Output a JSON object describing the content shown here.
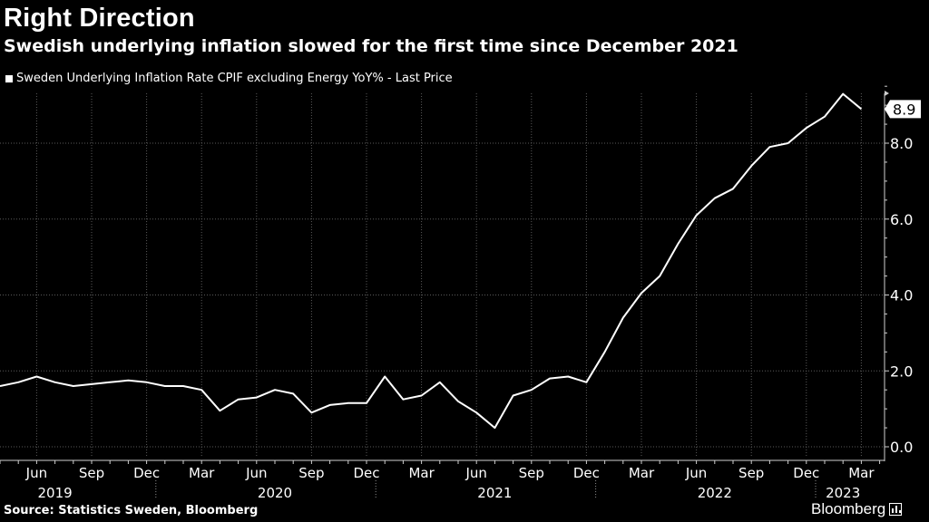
{
  "header": {
    "title": "Right Direction",
    "subtitle": "Swedish underlying inflation slowed for the first time since December 2021"
  },
  "legend": {
    "label": "Sweden Underlying Inflation Rate CPIF excluding Energy YoY% - Last Price"
  },
  "footer": {
    "source": "Source: Statistics Sweden, Bloomberg",
    "brand": "Bloomberg"
  },
  "colors": {
    "background": "#000000",
    "line": "#ffffff",
    "grid": "#5a5a5a",
    "text": "#ffffff"
  },
  "chart_data": {
    "type": "line",
    "title": "Right Direction",
    "subtitle": "Swedish underlying inflation slowed for the first time since December 2021",
    "xlabel": "",
    "ylabel": "",
    "ylim": [
      0,
      9.6
    ],
    "y_ticks": [
      "0.0",
      "2.0",
      "4.0",
      "6.0",
      "8.0"
    ],
    "y_tick_values": [
      0,
      2,
      4,
      6,
      8
    ],
    "x_tick_labels": [
      "Jun",
      "Sep",
      "Dec",
      "Mar",
      "Jun",
      "Sep",
      "Dec",
      "Mar",
      "Jun",
      "Sep",
      "Dec",
      "Mar",
      "Jun",
      "Sep",
      "Dec",
      "Mar"
    ],
    "x_tick_dates": [
      "2019-06",
      "2019-09",
      "2019-12",
      "2020-03",
      "2020-06",
      "2020-09",
      "2020-12",
      "2021-03",
      "2021-06",
      "2021-09",
      "2021-12",
      "2022-03",
      "2022-06",
      "2022-09",
      "2022-12",
      "2023-03"
    ],
    "year_labels": [
      "2019",
      "2020",
      "2021",
      "2022",
      "2023"
    ],
    "year_dates": [
      "2019-07",
      "2020-07",
      "2021-07",
      "2022-07",
      "2023-02"
    ],
    "grid": true,
    "last_value_label": "8.9",
    "series": [
      {
        "name": "Sweden Underlying Inflation Rate CPIF excluding Energy YoY% - Last Price",
        "x": [
          "2019-04",
          "2019-05",
          "2019-06",
          "2019-07",
          "2019-08",
          "2019-09",
          "2019-10",
          "2019-11",
          "2019-12",
          "2020-01",
          "2020-02",
          "2020-03",
          "2020-04",
          "2020-05",
          "2020-06",
          "2020-07",
          "2020-08",
          "2020-09",
          "2020-10",
          "2020-11",
          "2020-12",
          "2021-01",
          "2021-02",
          "2021-03",
          "2021-04",
          "2021-05",
          "2021-06",
          "2021-07",
          "2021-08",
          "2021-09",
          "2021-10",
          "2021-11",
          "2021-12",
          "2022-01",
          "2022-02",
          "2022-03",
          "2022-04",
          "2022-05",
          "2022-06",
          "2022-07",
          "2022-08",
          "2022-09",
          "2022-10",
          "2022-11",
          "2022-12",
          "2023-01",
          "2023-02",
          "2023-03"
        ],
        "values": [
          1.6,
          1.7,
          1.85,
          1.7,
          1.6,
          1.65,
          1.7,
          1.75,
          1.7,
          1.6,
          1.6,
          1.5,
          0.95,
          1.25,
          1.3,
          1.5,
          1.4,
          0.9,
          1.1,
          1.15,
          1.15,
          1.85,
          1.25,
          1.35,
          1.7,
          1.2,
          0.9,
          0.5,
          1.35,
          1.5,
          1.8,
          1.85,
          1.7,
          2.5,
          3.4,
          4.05,
          4.5,
          5.35,
          6.1,
          6.55,
          6.8,
          7.4,
          7.9,
          8.0,
          8.4,
          8.7,
          9.3,
          8.9
        ]
      }
    ]
  }
}
